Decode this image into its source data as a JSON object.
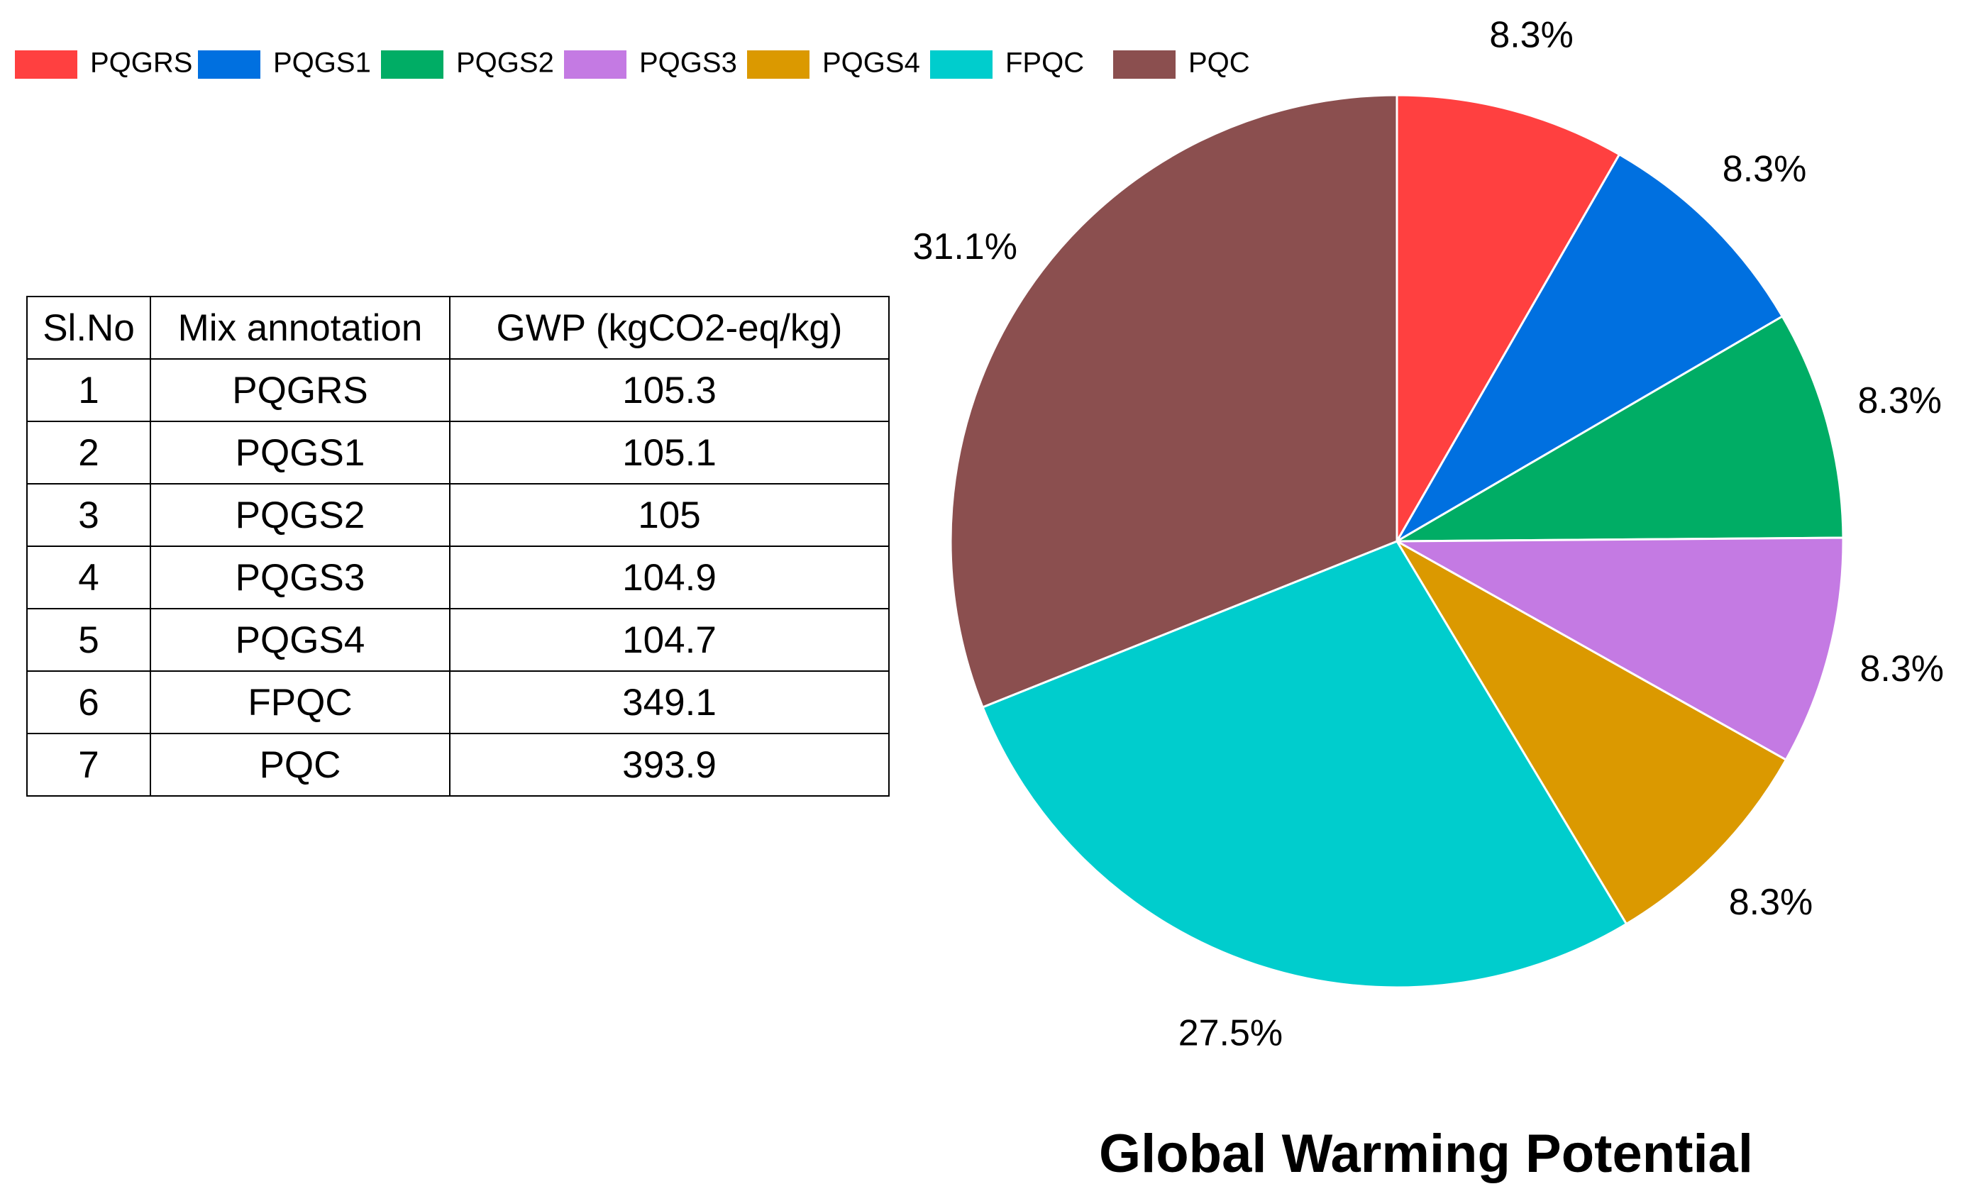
{
  "chart_data": {
    "type": "pie",
    "title": "Global Warming Potential",
    "categories": [
      "PQGRS",
      "PQGS1",
      "PQGS2",
      "PQGS3",
      "PQGS4",
      "FPQC",
      "PQC"
    ],
    "values": [
      105.3,
      105.1,
      105,
      104.9,
      104.7,
      349.1,
      393.9
    ],
    "percent_labels": [
      "8.3%",
      "8.3%",
      "8.3%",
      "8.3%",
      "8.3%",
      "27.5%",
      "31.1%"
    ],
    "colors": [
      "#FF4040",
      "#0070E0",
      "#00AD65",
      "#C47AE3",
      "#DB9900",
      "#00CDCD",
      "#8B4F4F"
    ],
    "legend_position": "top-left",
    "start_angle": "12 o'clock",
    "direction": "clockwise"
  },
  "table": {
    "headers": [
      "Sl.No",
      "Mix annotation",
      "GWP (kgCO2-eq/kg)"
    ],
    "rows": [
      [
        "1",
        "PQGRS",
        "105.3"
      ],
      [
        "2",
        "PQGS1",
        "105.1"
      ],
      [
        "3",
        "PQGS2",
        "105"
      ],
      [
        "4",
        "PQGS3",
        "104.9"
      ],
      [
        "5",
        "PQGS4",
        "104.7"
      ],
      [
        "6",
        "FPQC",
        "349.1"
      ],
      [
        "7",
        "PQC",
        "393.9"
      ]
    ]
  }
}
